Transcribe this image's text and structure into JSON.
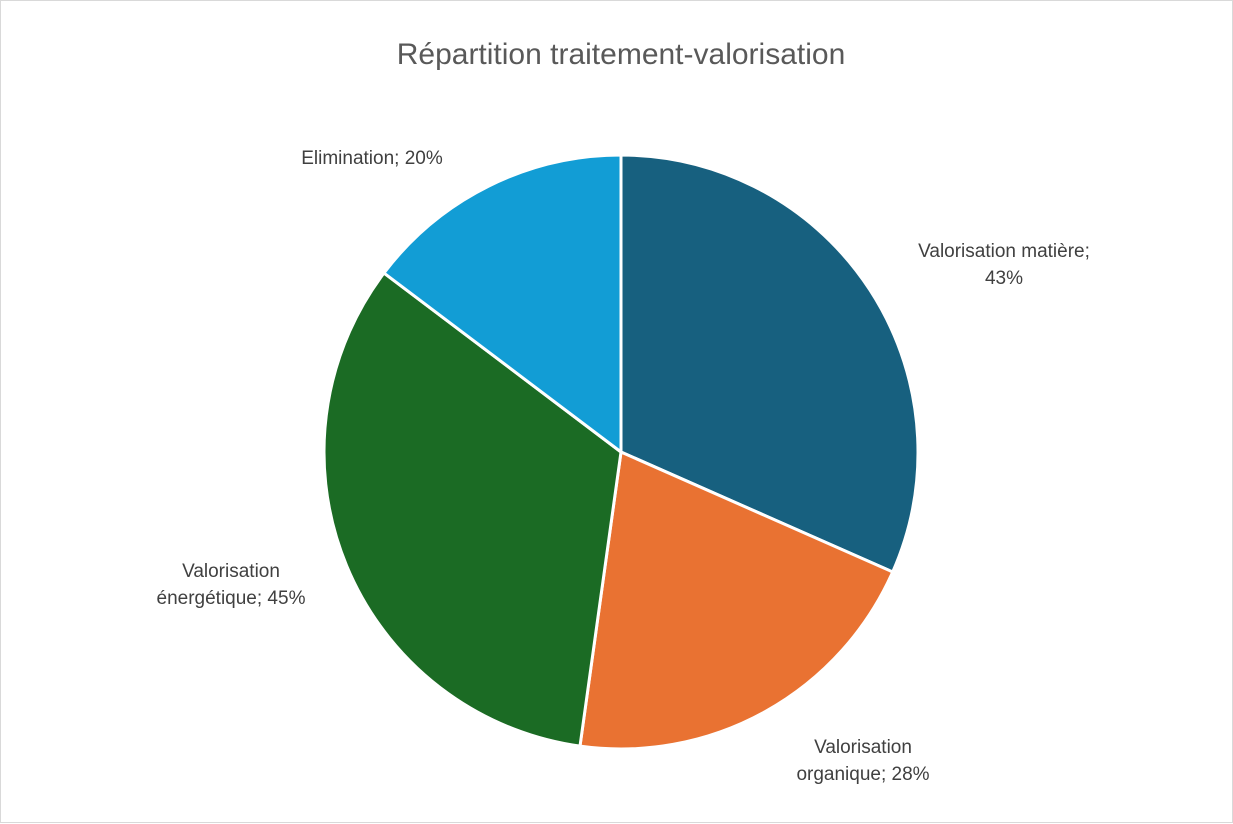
{
  "chart_data": {
    "type": "pie",
    "title": "Répartition traitement-valorisation",
    "slices": [
      {
        "label": "Valorisation matière",
        "value": 43,
        "value_text": "43%",
        "color": "#17607f"
      },
      {
        "label": "Valorisation organique",
        "value": 28,
        "value_text": "28%",
        "color": "#e97232"
      },
      {
        "label": "Valorisation énergétique",
        "value": 45,
        "value_text": "45%",
        "color": "#1b6b24"
      },
      {
        "label": "Elimination",
        "value": 20,
        "value_text": "20%",
        "color": "#129dd5"
      }
    ],
    "data_labels": [
      {
        "lines": [
          "Valorisation matière;",
          "43%"
        ]
      },
      {
        "lines": [
          "Valorisation",
          "organique; 28%"
        ]
      },
      {
        "lines": [
          "Valorisation",
          "énergétique; 45%"
        ]
      },
      {
        "lines": [
          "Elimination; 20%"
        ]
      }
    ],
    "legend": "none"
  }
}
